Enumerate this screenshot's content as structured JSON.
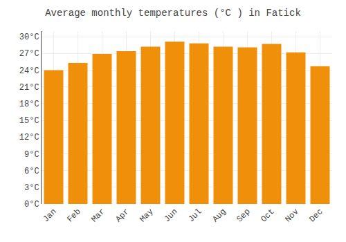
{
  "chart_data": {
    "type": "bar",
    "title": "Average monthly temperatures (°C ) in Fatick",
    "categories": [
      "Jan",
      "Feb",
      "Mar",
      "Apr",
      "May",
      "Jun",
      "Jul",
      "Aug",
      "Sep",
      "Oct",
      "Nov",
      "Dec"
    ],
    "values": [
      24.0,
      25.3,
      26.9,
      27.4,
      28.2,
      29.1,
      28.8,
      28.2,
      28.1,
      28.7,
      27.2,
      24.7
    ],
    "color": "#F0900A",
    "ylim": [
      0,
      31
    ],
    "yticks": [
      {
        "value": 0,
        "label": "0°C"
      },
      {
        "value": 3,
        "label": "3°C"
      },
      {
        "value": 6,
        "label": "6°C"
      },
      {
        "value": 9,
        "label": "9°C"
      },
      {
        "value": 12,
        "label": "12°C"
      },
      {
        "value": 15,
        "label": "15°C"
      },
      {
        "value": 18,
        "label": "18°C"
      },
      {
        "value": 21,
        "label": "21°C"
      },
      {
        "value": 24,
        "label": "24°C"
      },
      {
        "value": 27,
        "label": "27°C"
      },
      {
        "value": 30,
        "label": "30°C"
      }
    ],
    "grid": true
  }
}
